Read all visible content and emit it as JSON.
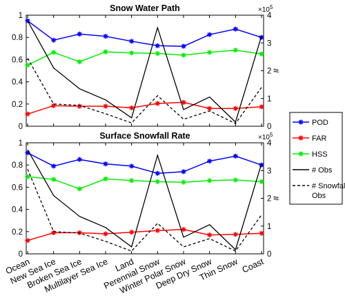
{
  "chart_data": [
    {
      "type": "line",
      "title": "Snow Water Path",
      "categories": [
        "Ocean",
        "New Sea Ice",
        "Broken Sea Ice",
        "Multilayer Sea Ice",
        "Land",
        "Perennial Snow",
        "Winter Polar Snow",
        "Deep Dry Snow",
        "Thin Snow",
        "Coast"
      ],
      "ylim": [
        0,
        1
      ],
      "yticks": [
        "0",
        "0.2",
        "0.4",
        "0.6",
        "0.8",
        "1"
      ],
      "y2lim": [
        0,
        4
      ],
      "y2ticks": [
        "0",
        "1",
        "2",
        "3",
        "4"
      ],
      "y2label": "#",
      "y2_exponent": "×10",
      "y2_exponent_power": "5",
      "grid": false,
      "series": [
        {
          "name": "POD",
          "axis": "left",
          "color": "#0000ff",
          "marker": "star",
          "values": [
            0.95,
            0.775,
            0.83,
            0.81,
            0.765,
            0.725,
            0.72,
            0.825,
            0.875,
            0.8
          ]
        },
        {
          "name": "FAR",
          "axis": "left",
          "color": "#ff0000",
          "marker": "star",
          "values": [
            0.11,
            0.185,
            0.18,
            0.18,
            0.165,
            0.205,
            0.215,
            0.16,
            0.16,
            0.175
          ]
        },
        {
          "name": "HSS",
          "axis": "left",
          "color": "#00ee00",
          "marker": "star",
          "values": [
            0.55,
            0.665,
            0.58,
            0.67,
            0.66,
            0.655,
            0.64,
            0.665,
            0.685,
            0.65
          ]
        },
        {
          "name": "# Obs",
          "axis": "right",
          "color": "#000000",
          "dash": "solid",
          "values": [
            3.8,
            2.1,
            1.35,
            0.95,
            0.3,
            3.55,
            0.6,
            1.05,
            0.15,
            3.25
          ]
        },
        {
          "name": "# Snowfall Obs",
          "axis": "right",
          "color": "#000000",
          "dash": "dashed",
          "values": [
            2.45,
            0.8,
            0.75,
            0.45,
            0.12,
            1.1,
            0.25,
            0.55,
            0.1,
            1.4
          ]
        }
      ]
    },
    {
      "type": "line",
      "title": "Surface Snowfall Rate",
      "categories": [
        "Ocean",
        "New Sea Ice",
        "Broken Sea Ice",
        "Multilayer Sea Ice",
        "Land",
        "Perennial Snow",
        "Winter Polar Snow",
        "Deep Dry Snow",
        "Thin Snow",
        "Coast"
      ],
      "ylim": [
        0,
        1
      ],
      "yticks": [
        "0",
        "0.2",
        "0.4",
        "0.6",
        "0.8",
        "1"
      ],
      "y2lim": [
        0,
        4
      ],
      "y2ticks": [
        "0",
        "1",
        "2",
        "3",
        "4"
      ],
      "y2label": "#",
      "y2_exponent": "×10",
      "y2_exponent_power": "5",
      "grid": false,
      "series": [
        {
          "name": "POD",
          "axis": "left",
          "color": "#0000ff",
          "marker": "star",
          "values": [
            0.91,
            0.79,
            0.85,
            0.81,
            0.79,
            0.725,
            0.74,
            0.835,
            0.88,
            0.8
          ]
        },
        {
          "name": "FAR",
          "axis": "left",
          "color": "#ff0000",
          "marker": "star",
          "values": [
            0.12,
            0.19,
            0.19,
            0.18,
            0.195,
            0.21,
            0.22,
            0.17,
            0.175,
            0.185
          ]
        },
        {
          "name": "HSS",
          "axis": "left",
          "color": "#00ee00",
          "marker": "star",
          "values": [
            0.695,
            0.67,
            0.585,
            0.675,
            0.66,
            0.65,
            0.645,
            0.66,
            0.665,
            0.65
          ]
        },
        {
          "name": "# Obs",
          "axis": "right",
          "color": "#000000",
          "dash": "solid",
          "values": [
            3.75,
            2.1,
            1.35,
            0.95,
            0.25,
            3.55,
            0.6,
            1.05,
            0.15,
            3.25
          ]
        },
        {
          "name": "# Snowfall Obs",
          "axis": "right",
          "color": "#000000",
          "dash": "dashed",
          "values": [
            3.05,
            0.8,
            0.75,
            0.45,
            0.1,
            1.1,
            0.25,
            0.55,
            0.1,
            1.4
          ]
        }
      ]
    }
  ],
  "legend": {
    "placement": "right",
    "items": [
      {
        "label": "POD",
        "color": "#0000ff",
        "style": "line-star"
      },
      {
        "label": "FAR",
        "color": "#ff0000",
        "style": "line-star"
      },
      {
        "label": "HSS",
        "color": "#00ee00",
        "style": "line-star"
      },
      {
        "label": "# Obs",
        "color": "#000000",
        "style": "solid"
      },
      {
        "label": "# Snowfall",
        "label2": "Obs",
        "color": "#000000",
        "style": "dashed"
      }
    ]
  }
}
